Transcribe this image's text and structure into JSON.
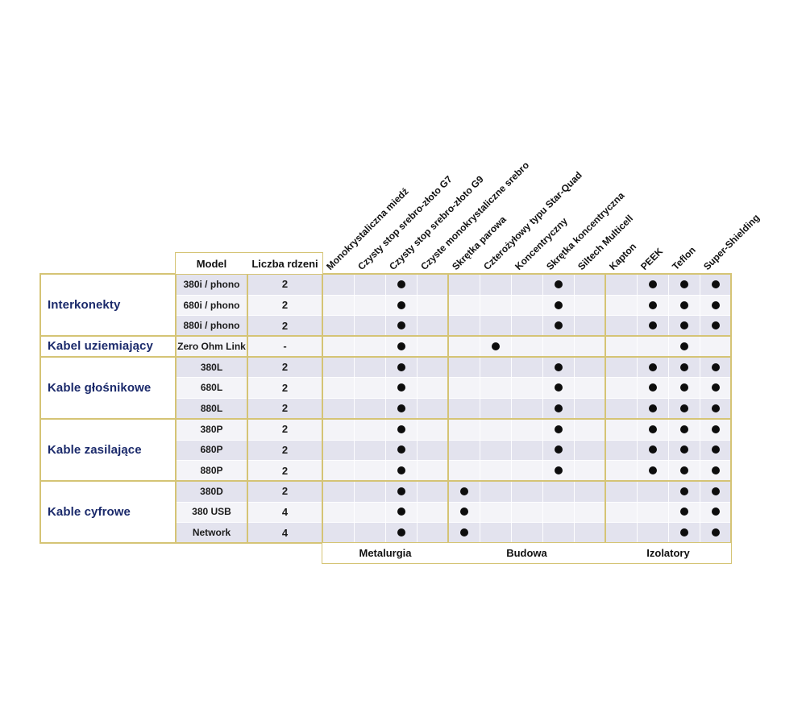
{
  "chart_data": {
    "type": "table",
    "column_headers": {
      "model": "Model",
      "cores": "Liczba rdzeni"
    },
    "column_groups": [
      {
        "label": "Metalurgia",
        "columns": [
          "Monokrystaliczna miedź",
          "Czysty stop srebro-złoto G7",
          "Czysty stop srebro-złoto G9",
          "Czyste monokrystaliczne srebro"
        ]
      },
      {
        "label": "Budowa",
        "columns": [
          "Skrętka parowa",
          "Czterożyłowy typu Star-Quad",
          "Koncentryczny",
          "Skrętka koncentryczna",
          "Siltech Multicell"
        ]
      },
      {
        "label": "Izolatory",
        "columns": [
          "Kapton",
          "PEEK",
          "Teflon",
          "Super-Shielding"
        ]
      }
    ],
    "categories": [
      {
        "label": "Interkonekty",
        "rows": [
          {
            "model": "380i / phono",
            "cores": "2",
            "features": [
              3,
              8,
              11,
              12,
              13
            ]
          },
          {
            "model": "680i / phono",
            "cores": "2",
            "features": [
              3,
              8,
              11,
              12,
              13
            ]
          },
          {
            "model": "880i / phono",
            "cores": "2",
            "features": [
              3,
              8,
              11,
              12,
              13
            ]
          }
        ]
      },
      {
        "label": "Kabel uziemiający",
        "rows": [
          {
            "model": "Zero Ohm Link",
            "cores": "-",
            "features": [
              3,
              6,
              12
            ]
          }
        ]
      },
      {
        "label": "Kable głośnikowe",
        "rows": [
          {
            "model": "380L",
            "cores": "2",
            "features": [
              3,
              8,
              11,
              12,
              13
            ]
          },
          {
            "model": "680L",
            "cores": "2",
            "features": [
              3,
              8,
              11,
              12,
              13
            ]
          },
          {
            "model": "880L",
            "cores": "2",
            "features": [
              3,
              8,
              11,
              12,
              13
            ]
          }
        ]
      },
      {
        "label": "Kable zasilające",
        "rows": [
          {
            "model": "380P",
            "cores": "2",
            "features": [
              3,
              8,
              11,
              12,
              13
            ]
          },
          {
            "model": "680P",
            "cores": "2",
            "features": [
              3,
              8,
              11,
              12,
              13
            ]
          },
          {
            "model": "880P",
            "cores": "2",
            "features": [
              3,
              8,
              11,
              12,
              13
            ]
          }
        ]
      },
      {
        "label": "Kable cyfrowe",
        "rows": [
          {
            "model": "380D",
            "cores": "2",
            "features": [
              3,
              5,
              12,
              13
            ]
          },
          {
            "model": "380 USB",
            "cores": "4",
            "features": [
              3,
              5,
              12,
              13
            ]
          },
          {
            "model": "Network",
            "cores": "4",
            "features": [
              3,
              5,
              12,
              13
            ]
          }
        ]
      }
    ]
  },
  "colors": {
    "border": "#d5c475",
    "stripe_dark": "#e3e3ee",
    "stripe_light": "#f4f4f8",
    "category_text": "#1b2a6b",
    "dot": "#0d0d0d"
  }
}
